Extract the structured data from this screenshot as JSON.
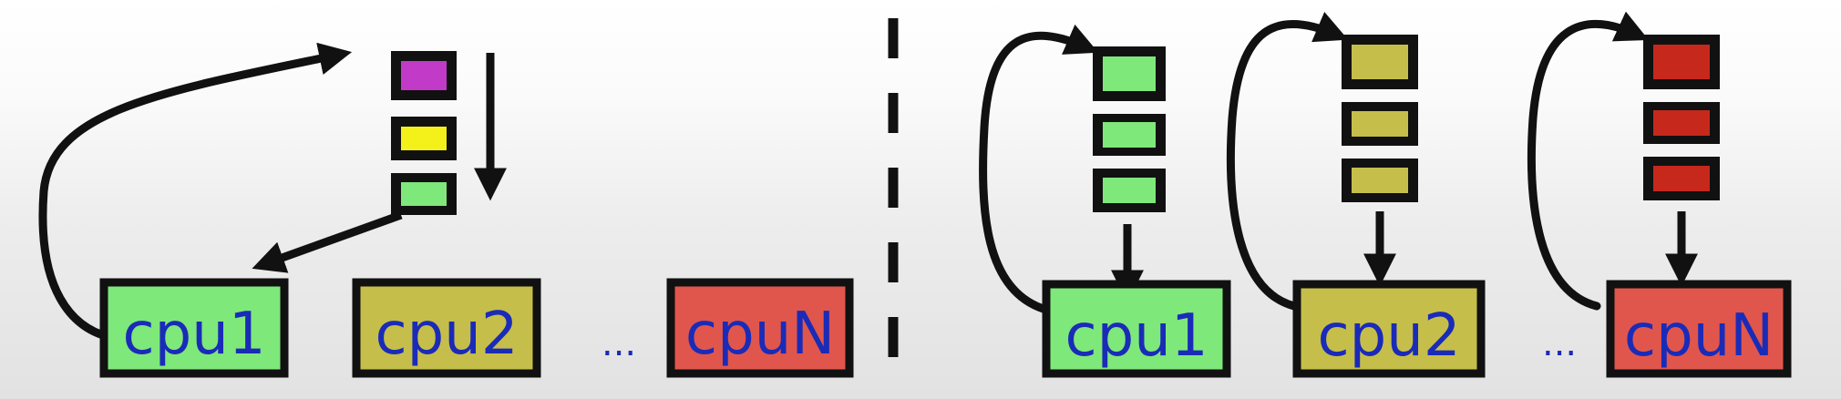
{
  "colors": {
    "queue_magenta": "#c23ac8",
    "queue_yellow": "#f4f01a",
    "cpu1_green": "#7ee87a",
    "cpu2_olive": "#c6be4a",
    "cpuN_red": "#e0564c",
    "task_red": "#c6281c",
    "label_blue": "#1a2bb8",
    "stroke": "#111111"
  },
  "left": {
    "cpus": [
      {
        "label": "cpu1"
      },
      {
        "label": "cpu2"
      },
      {
        "label": "cpuN"
      }
    ],
    "ellipsis": "..."
  },
  "right": {
    "cpus": [
      {
        "label": "cpu1"
      },
      {
        "label": "cpu2"
      },
      {
        "label": "cpuN"
      }
    ],
    "ellipsis": "..."
  }
}
